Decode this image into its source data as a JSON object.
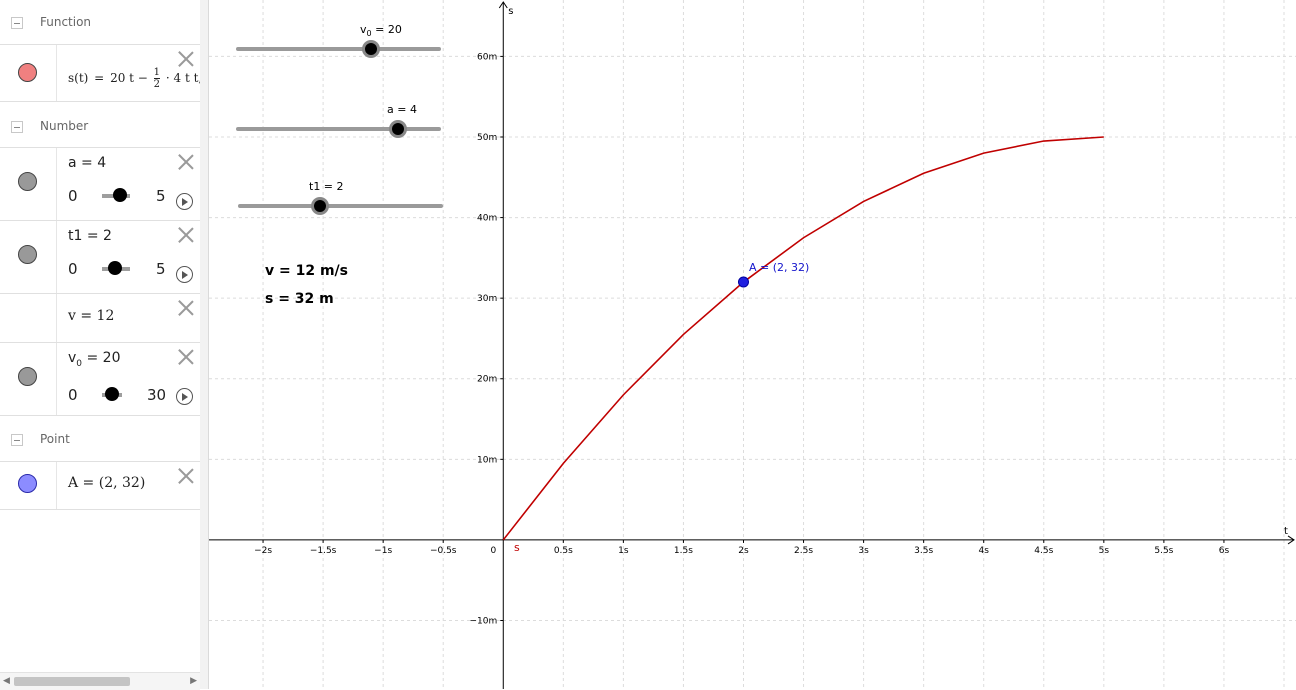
{
  "algebra": {
    "function_header": "Function",
    "function_item": {
      "lhs": "s(t)",
      "eq": "=",
      "expr_a": "20 t −",
      "frac_num": "1",
      "frac_den": "2",
      "expr_b": "· 4 t t,",
      "color": "#f08080"
    },
    "number_header": "Number",
    "a_item": {
      "def": "a = 4",
      "min": "0",
      "max": "5",
      "value": 4
    },
    "t1_item": {
      "def": "t1 = 2",
      "min": "0",
      "max": "5",
      "value": 2
    },
    "v_item": {
      "def": "v = 12"
    },
    "v0_item": {
      "def_main": "v",
      "def_sub": "0",
      "def_rest": " = 20",
      "min": "0",
      "max": "30",
      "value": 20
    },
    "point_header": "Point",
    "A_item": {
      "def": "A = (2, 32)",
      "color": "#8c8cff"
    }
  },
  "graphics": {
    "sliders": {
      "v0": {
        "label_main": "v",
        "label_sub": "0",
        "label_rest": " = 20"
      },
      "a": {
        "label": "a = 4"
      },
      "t1": {
        "label": "t1 = 2"
      }
    },
    "texts": {
      "v": "v = 12 m/s",
      "s": "s = 32 m"
    },
    "point_label": "A = (2, 32)",
    "curve_label": "s",
    "curve_color": "#c00000",
    "point_color": "#2020e0"
  },
  "chart_data": {
    "type": "line",
    "xlabel": "t",
    "ylabel": "s",
    "xlim": [
      -2.45,
      6.6
    ],
    "ylim": [
      -18.5,
      67
    ],
    "x_ticks": [
      {
        "v": -2,
        "label": "−2s"
      },
      {
        "v": -1.5,
        "label": "−1.5s"
      },
      {
        "v": -1,
        "label": "−1s"
      },
      {
        "v": -0.5,
        "label": "−0.5s"
      },
      {
        "v": 0.5,
        "label": "0.5s"
      },
      {
        "v": 1,
        "label": "1s"
      },
      {
        "v": 1.5,
        "label": "1.5s"
      },
      {
        "v": 2,
        "label": "2s"
      },
      {
        "v": 2.5,
        "label": "2.5s"
      },
      {
        "v": 3,
        "label": "3s"
      },
      {
        "v": 3.5,
        "label": "3.5s"
      },
      {
        "v": 4,
        "label": "4s"
      },
      {
        "v": 4.5,
        "label": "4.5s"
      },
      {
        "v": 5,
        "label": "5s"
      },
      {
        "v": 5.5,
        "label": "5.5s"
      },
      {
        "v": 6,
        "label": "6s"
      }
    ],
    "y_ticks": [
      {
        "v": -10,
        "label": "−10m"
      },
      {
        "v": 10,
        "label": "10m"
      },
      {
        "v": 20,
        "label": "20m"
      },
      {
        "v": 30,
        "label": "30m"
      },
      {
        "v": 40,
        "label": "40m"
      },
      {
        "v": 50,
        "label": "50m"
      },
      {
        "v": 60,
        "label": "60m"
      }
    ],
    "origin_label": "0",
    "grid": true,
    "series": [
      {
        "name": "s",
        "x": [
          0,
          0.5,
          1,
          1.5,
          2,
          2.5,
          3,
          3.5,
          4,
          4.5,
          5
        ],
        "y": [
          0,
          9.5,
          18,
          25.5,
          32,
          37.5,
          42,
          45.5,
          48,
          49.5,
          50
        ]
      }
    ],
    "points": [
      {
        "name": "A",
        "x": 2,
        "y": 32
      }
    ]
  }
}
